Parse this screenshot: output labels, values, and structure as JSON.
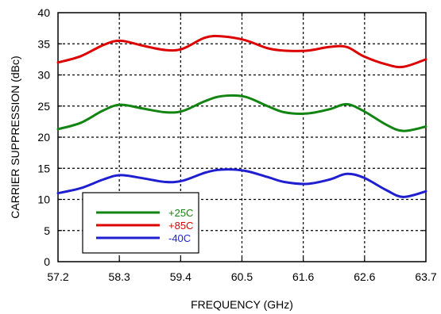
{
  "chart_data": {
    "type": "line",
    "title": "",
    "xlabel": "FREQUENCY (GHz)",
    "ylabel": "CARRIER SUPPRESSION (dBc)",
    "xlim": [
      57.2,
      63.7
    ],
    "ylim": [
      0,
      40
    ],
    "x_ticks": [
      "57.2",
      "58.3",
      "59.4",
      "60.5",
      "61.6",
      "62.6",
      "63.7"
    ],
    "y_ticks": [
      "0",
      "5",
      "10",
      "15",
      "20",
      "25",
      "30",
      "35",
      "40"
    ],
    "grid": true,
    "grid_style": "dotted",
    "legend_position": "bottom-left",
    "x": [
      57.2,
      57.6,
      58.0,
      58.3,
      58.7,
      59.1,
      59.4,
      59.8,
      60.1,
      60.5,
      60.9,
      61.2,
      61.6,
      62.0,
      62.3,
      62.6,
      63.0,
      63.3,
      63.7
    ],
    "series": [
      {
        "name": "+85C",
        "color": "#dd0000",
        "values": [
          32.0,
          33.0,
          34.8,
          35.5,
          34.7,
          34.0,
          34.2,
          36.0,
          36.2,
          35.6,
          34.3,
          33.9,
          33.9,
          34.5,
          34.5,
          33.0,
          31.7,
          31.3,
          32.5
        ]
      },
      {
        "name": "+25C",
        "color": "#128412",
        "values": [
          21.3,
          22.3,
          24.3,
          25.2,
          24.6,
          24.0,
          24.2,
          25.8,
          26.6,
          26.5,
          25.0,
          24.0,
          23.8,
          24.5,
          25.3,
          24.2,
          22.0,
          21.0,
          21.7
        ]
      },
      {
        "name": "-40C",
        "color": "#1f1fd0",
        "values": [
          11.0,
          11.8,
          13.2,
          13.9,
          13.4,
          12.8,
          13.0,
          14.3,
          14.8,
          14.6,
          13.6,
          12.8,
          12.5,
          13.2,
          14.1,
          13.5,
          11.5,
          10.4,
          11.3
        ]
      }
    ]
  }
}
